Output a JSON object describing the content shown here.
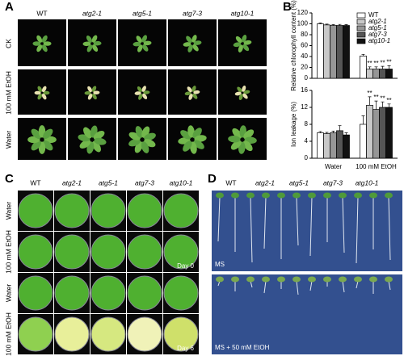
{
  "panel_a": {
    "label": "A",
    "columns": [
      "WT",
      "atg2-1",
      "atg5-1",
      "atg7-3",
      "atg10-1"
    ],
    "rows": [
      "CK",
      "100 mM EtOH",
      "Water"
    ]
  },
  "panel_b": {
    "label": "B"
  },
  "chart_data": [
    {
      "type": "bar",
      "y_label": "Relative chlorophyll content (%)",
      "categories": [
        null,
        null
      ],
      "ylim": [
        0,
        120
      ],
      "yticks": [
        0,
        20,
        40,
        60,
        80,
        100,
        120
      ],
      "legend": "top-right",
      "series": [
        {
          "name": "WT",
          "color": "#ffffff",
          "values": [
            100,
            41
          ],
          "errors": [
            1.5,
            3
          ],
          "significance": [
            null,
            null
          ]
        },
        {
          "name": "atg2-1",
          "color": "#c8c8c8",
          "values": [
            98,
            17
          ],
          "errors": [
            1.5,
            4
          ],
          "significance": [
            null,
            "**"
          ]
        },
        {
          "name": "atg5-1",
          "color": "#969696",
          "values": [
            97,
            17
          ],
          "errors": [
            1.5,
            4
          ],
          "significance": [
            null,
            "**"
          ]
        },
        {
          "name": "atg7-3",
          "color": "#555555",
          "values": [
            97,
            17
          ],
          "errors": [
            2,
            5
          ],
          "significance": [
            null,
            "**"
          ]
        },
        {
          "name": "atg10-1",
          "color": "#111111",
          "values": [
            97,
            17
          ],
          "errors": [
            1.5,
            6
          ],
          "significance": [
            null,
            "**"
          ]
        }
      ]
    },
    {
      "type": "bar",
      "y_label": "Ion leakage (%)",
      "categories": [
        "Water",
        "100 mM EtOH"
      ],
      "ylim": [
        0,
        16
      ],
      "yticks": [
        0,
        4,
        8,
        12,
        16
      ],
      "series": [
        {
          "color": "#ffffff",
          "values": [
            6,
            8
          ],
          "errors": [
            0.3,
            2
          ],
          "significance": [
            null,
            null
          ]
        },
        {
          "color": "#c8c8c8",
          "values": [
            5.8,
            12.5
          ],
          "errors": [
            0.3,
            2
          ],
          "significance": [
            null,
            "**"
          ]
        },
        {
          "color": "#969696",
          "values": [
            6,
            11.5
          ],
          "errors": [
            0.4,
            2
          ],
          "significance": [
            null,
            "**"
          ]
        },
        {
          "color": "#555555",
          "values": [
            6.5,
            12
          ],
          "errors": [
            1.2,
            1.3
          ],
          "significance": [
            null,
            "**"
          ]
        },
        {
          "color": "#111111",
          "values": [
            5.5,
            12
          ],
          "errors": [
            0.5,
            0.8
          ],
          "significance": [
            null,
            "**"
          ]
        }
      ]
    }
  ],
  "panel_c": {
    "label": "C",
    "columns": [
      "WT",
      "atg2-1",
      "atg5-1",
      "atg7-3",
      "atg10-1"
    ],
    "rows": [
      "Water",
      "100 mM EtOH",
      "Water",
      "100 mM EtOH"
    ],
    "day_labels": [
      "Day 0",
      "Day 6"
    ]
  },
  "panel_d": {
    "label": "D",
    "columns": [
      "WT",
      "atg2-1",
      "atg5-1",
      "atg7-3",
      "atg10-1"
    ],
    "conditions": [
      "MS",
      "MS + 50 mM EtOH"
    ]
  }
}
